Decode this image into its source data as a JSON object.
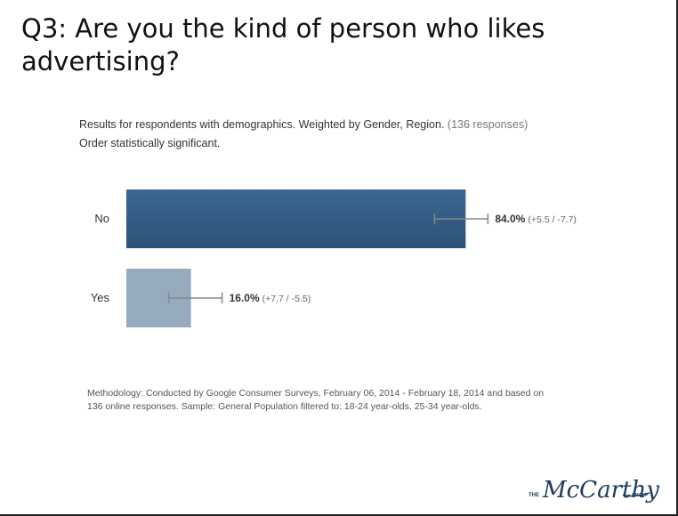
{
  "slide": {
    "title": "Q3: Are you the kind of person who likes advertising?"
  },
  "subtitle": {
    "line1_main": "Results for respondents with demographics. Weighted by Gender, Region.",
    "line1_muted": "(136 responses)",
    "line2": "Order statistically significant."
  },
  "methodology": "Methodology: Conducted by Google Consumer Surveys, February 06, 2014 - February 18, 2014 and based on 136 online responses. Sample: General Population filtered to: 18-24 year-olds, 25-34 year-olds.",
  "logo": {
    "small_left": "THE",
    "main": "McCarthy",
    "small_right": "GROUP"
  },
  "colors": {
    "bar_no": "#2d5278",
    "bar_yes": "#97abbe",
    "error_bar": "#888888"
  },
  "chart_data": {
    "type": "bar",
    "orientation": "horizontal",
    "categories": [
      "No",
      "Yes"
    ],
    "values": [
      84.0,
      16.0
    ],
    "value_labels": [
      "84.0%",
      "16.0%"
    ],
    "error_plus": [
      5.5,
      7.7
    ],
    "error_minus": [
      7.7,
      5.5
    ],
    "error_labels": [
      "(+5.5 / -7.7)",
      "(+7.7 / -5.5)"
    ],
    "xlim": [
      0,
      100
    ],
    "grid": false
  }
}
